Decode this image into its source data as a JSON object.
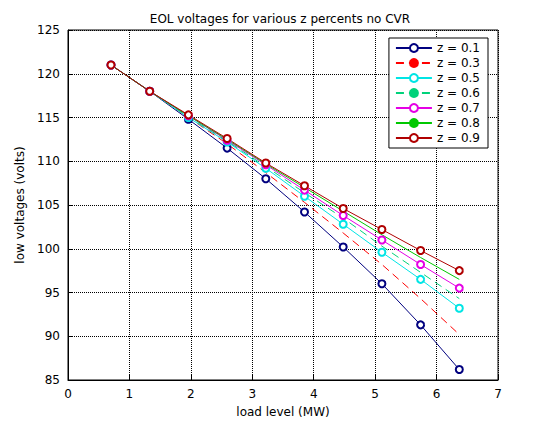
{
  "chart_data": {
    "type": "line",
    "title": "EOL voltages for various z percents no CVR",
    "x_label": "load level (MW)",
    "y_label": "low voltages (volts)",
    "x": [
      0.7,
      1.33,
      1.96,
      2.59,
      3.22,
      3.85,
      4.48,
      5.11,
      5.74,
      6.37
    ],
    "series": [
      {
        "name": "z = 0.1",
        "color": "#00007f",
        "marker": "circle",
        "line_style": "solid",
        "values": [
          121,
          118,
          114.8,
          111.5,
          108,
          104.2,
          100.2,
          96,
          91.3,
          86.2
        ]
      },
      {
        "name": "z = 0.3",
        "color": "#ff0000",
        "marker": "none",
        "line_style": "dashed",
        "values": [
          121,
          118,
          115,
          112,
          108.7,
          105.3,
          101.8,
          98.2,
          94.3,
          90.2
        ]
      },
      {
        "name": "z = 0.5",
        "color": "#00e5e5",
        "marker": "circle",
        "line_style": "solid",
        "values": [
          121,
          118,
          115,
          112.2,
          109.2,
          106,
          102.8,
          99.6,
          96.5,
          93.2
        ]
      },
      {
        "name": "z = 0.6",
        "color": "#00d27a",
        "marker": "none",
        "line_style": "dashed",
        "values": [
          121,
          118,
          115.1,
          112.3,
          109.4,
          106.4,
          103.5,
          100.3,
          97.3,
          94.3
        ]
      },
      {
        "name": "z = 0.7",
        "color": "#e500e5",
        "marker": "circle",
        "line_style": "solid",
        "values": [
          121,
          118,
          115.2,
          112.4,
          109.6,
          106.7,
          103.8,
          101,
          98.2,
          95.5
        ]
      },
      {
        "name": "z = 0.8",
        "color": "#00c800",
        "marker": "none",
        "line_style": "solid",
        "values": [
          121,
          118,
          115.2,
          112.5,
          109.7,
          107,
          104.3,
          101.6,
          99,
          96.5
        ]
      },
      {
        "name": "z = 0.9",
        "color": "#b00000",
        "marker": "circle",
        "line_style": "solid",
        "values": [
          121,
          118,
          115.3,
          112.6,
          109.8,
          107.2,
          104.6,
          102.2,
          99.8,
          97.5
        ]
      }
    ],
    "xlim": [
      0,
      7
    ],
    "xticks": [
      0,
      1,
      2,
      3,
      4,
      5,
      6,
      7
    ],
    "ylim": [
      85,
      125
    ],
    "yticks": [
      85,
      90,
      95,
      100,
      105,
      110,
      115,
      120,
      125
    ],
    "grid": true,
    "legend": "upper right"
  }
}
